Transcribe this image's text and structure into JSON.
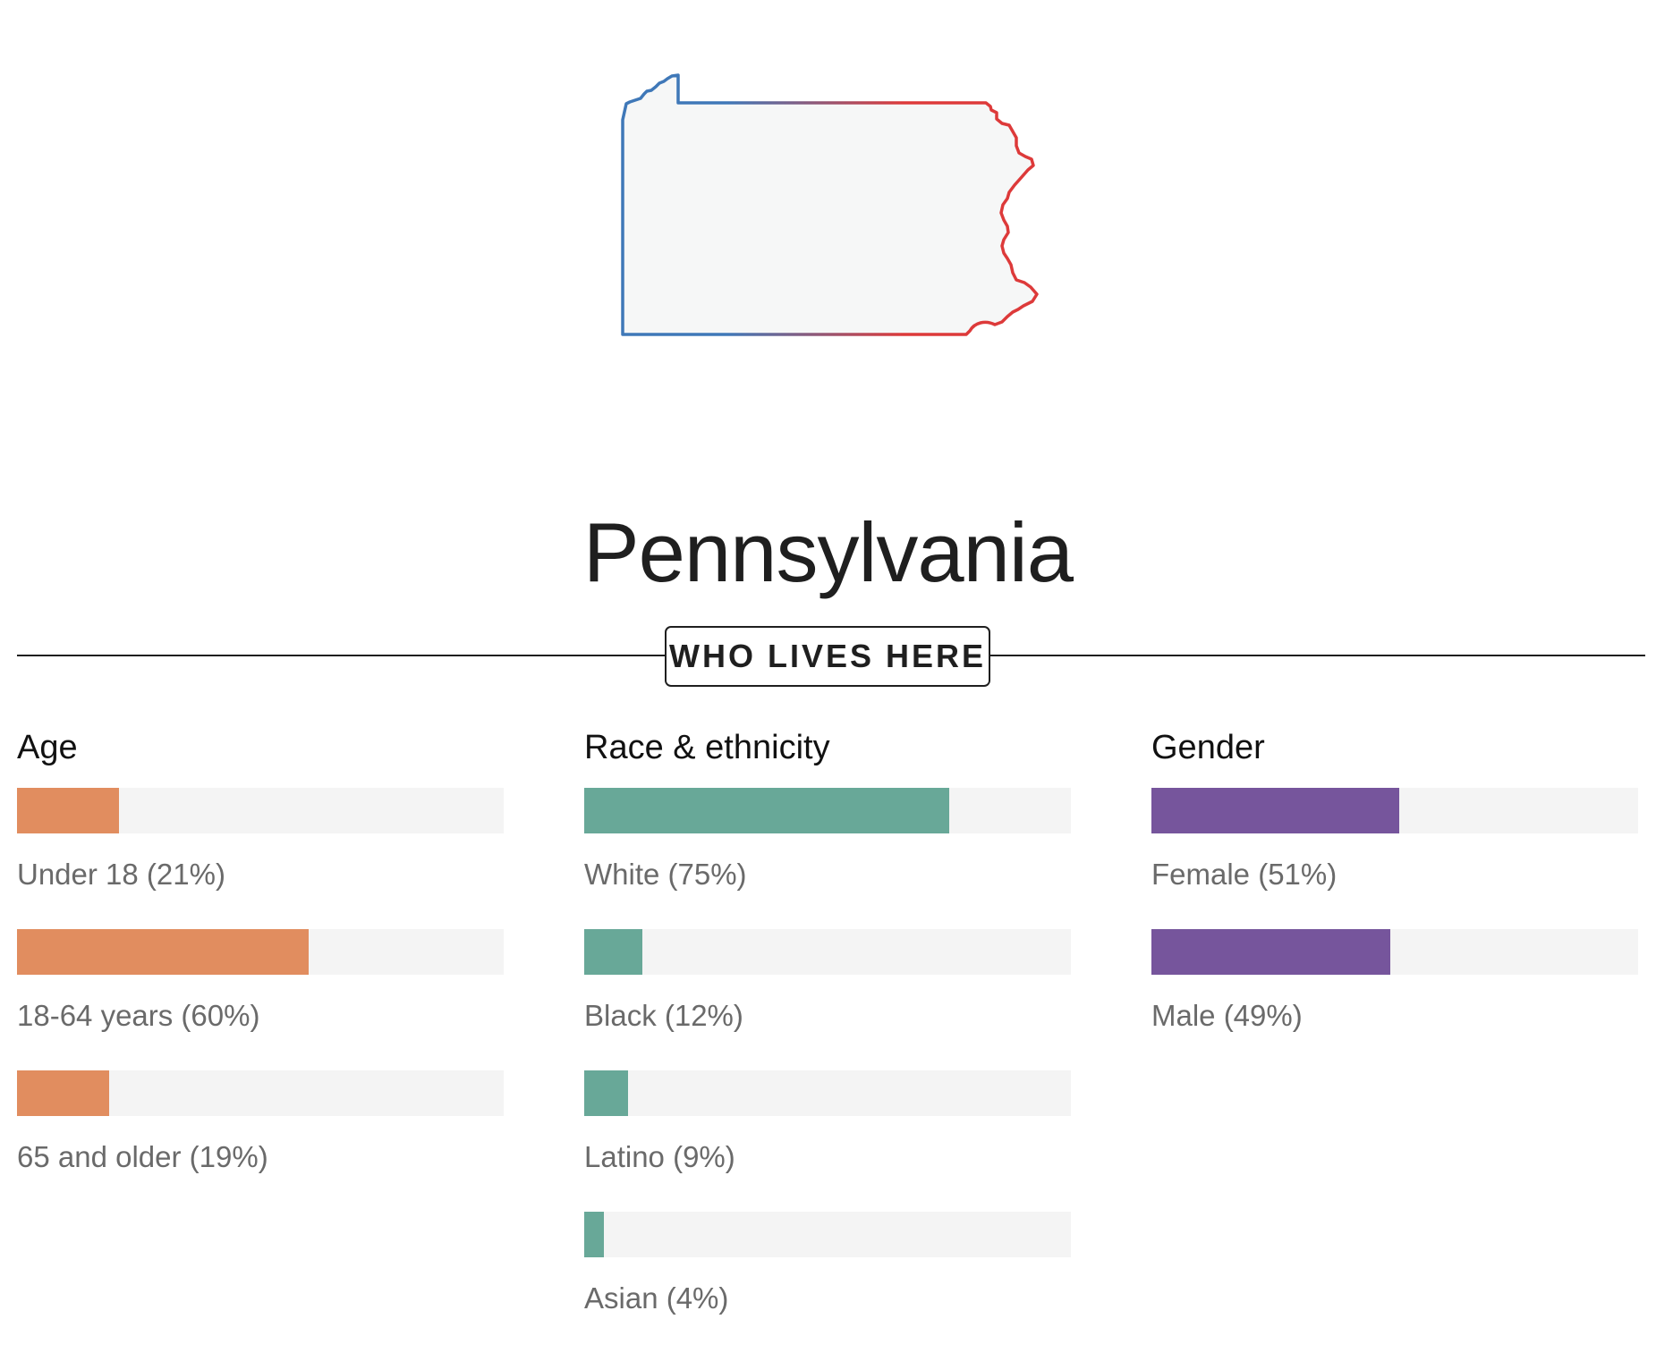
{
  "state": {
    "name": "Pennsylvania",
    "map_gradient": [
      "#3f78b8",
      "#dd3a3a"
    ]
  },
  "section": {
    "label": "WHO LIVES HERE"
  },
  "chart_data": [
    {
      "type": "bar",
      "orientation": "horizontal",
      "title": "Age",
      "color": "#e18d5f",
      "categories": [
        "Under 18",
        "18-64 years",
        "65 and older"
      ],
      "values": [
        21,
        60,
        19
      ],
      "labels": [
        "Under 18 (21%)",
        "18-64 years (60%)",
        "65 and older (19%)"
      ],
      "xlim": [
        0,
        100
      ],
      "grid": false
    },
    {
      "type": "bar",
      "orientation": "horizontal",
      "title": "Race & ethnicity",
      "color": "#68a898",
      "categories": [
        "White",
        "Black",
        "Latino",
        "Asian"
      ],
      "values": [
        75,
        12,
        9,
        4
      ],
      "labels": [
        "White (75%)",
        "Black (12%)",
        "Latino (9%)",
        "Asian (4%)"
      ],
      "xlim": [
        0,
        100
      ],
      "grid": false
    },
    {
      "type": "bar",
      "orientation": "horizontal",
      "title": "Gender",
      "color": "#76559c",
      "categories": [
        "Female",
        "Male"
      ],
      "values": [
        51,
        49
      ],
      "labels": [
        "Female (51%)",
        "Male (49%)"
      ],
      "xlim": [
        0,
        100
      ],
      "grid": false
    }
  ]
}
